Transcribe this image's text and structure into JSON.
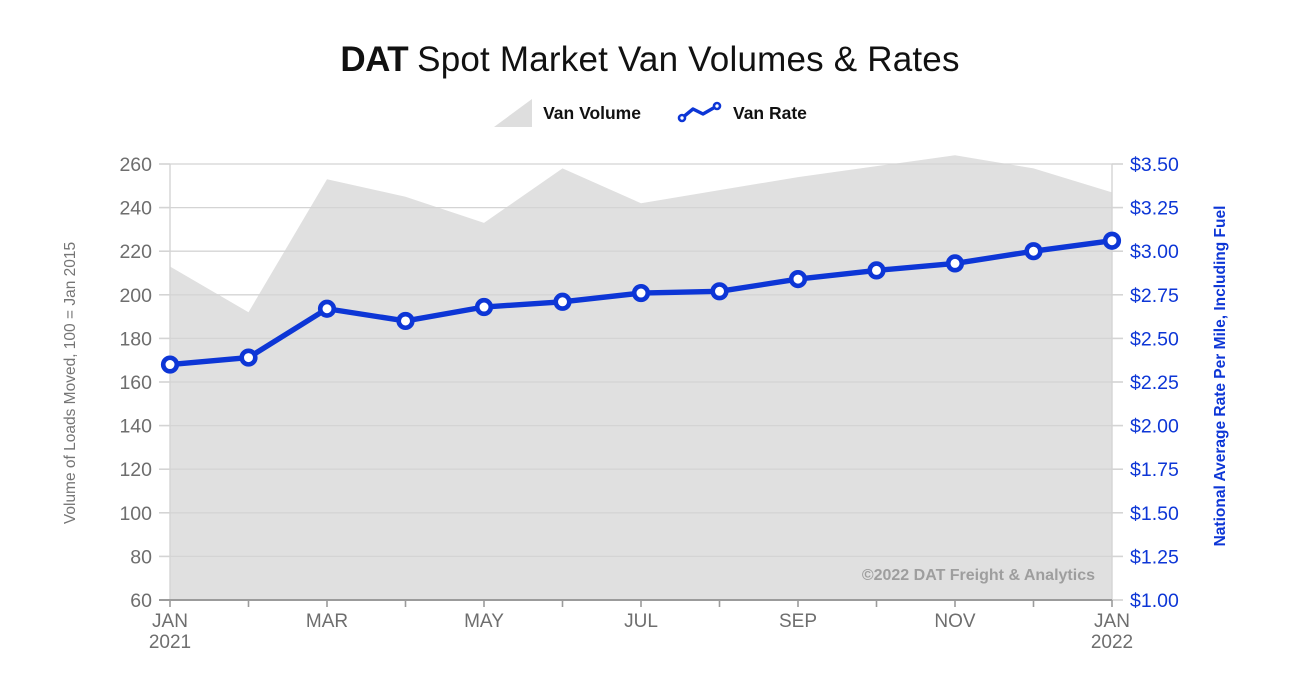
{
  "header": {
    "title_bold": "DAT",
    "title_rest": "Spot Market Van Volumes & Rates"
  },
  "legend": {
    "volume_label": "Van Volume",
    "rate_label": "Van Rate"
  },
  "colors": {
    "brand_blue": "#0d36d6",
    "area_gray": "#e0e0e0",
    "grid": "#d4d4d4",
    "axis_text": "#6e6e6e",
    "axis_line": "#9b9b9b",
    "watermark": "#9e9e9e"
  },
  "chart_data": {
    "type": "combo",
    "title": "DAT Spot Market Van Volumes & Rates",
    "legend_position": "top",
    "grid": true,
    "categories": [
      "Jan 2021",
      "Feb 2021",
      "Mar 2021",
      "Apr 2021",
      "May 2021",
      "Jun 2021",
      "Jul 2021",
      "Aug 2021",
      "Sep 2021",
      "Oct 2021",
      "Nov 2021",
      "Dec 2021",
      "Jan 2022"
    ],
    "series": [
      {
        "name": "Van Volume",
        "type": "area",
        "axis": "left",
        "color": "#e0e0e0",
        "values": [
          213,
          192,
          253,
          245,
          233,
          258,
          242,
          248,
          254,
          259,
          264,
          258,
          247
        ]
      },
      {
        "name": "Van Rate",
        "type": "line",
        "axis": "right",
        "color": "#0d36d6",
        "values": [
          2.35,
          2.39,
          2.67,
          2.6,
          2.68,
          2.71,
          2.76,
          2.77,
          2.84,
          2.89,
          2.93,
          3.0,
          3.06
        ]
      }
    ],
    "left_axis": {
      "label": "Volume of Loads Moved, 100 = Jan 2015",
      "min": 60,
      "max": 260,
      "step": 20,
      "ticks": [
        "260",
        "240",
        "220",
        "200",
        "180",
        "160",
        "140",
        "120",
        "100",
        "80",
        "60"
      ]
    },
    "right_axis": {
      "label": "National Average Rate Per Mile, Including Fuel",
      "min": 1.0,
      "max": 3.5,
      "step": 0.25,
      "ticks": [
        "$3.50",
        "$3.25",
        "$3.00",
        "$2.75",
        "$2.50",
        "$2.25",
        "$2.00",
        "$1.75",
        "$1.50",
        "$1.25",
        "$1.00"
      ]
    },
    "x_ticks": [
      {
        "i": 0,
        "lines": [
          "JAN",
          "2021"
        ]
      },
      {
        "i": 2,
        "lines": [
          "MAR"
        ]
      },
      {
        "i": 4,
        "lines": [
          "MAY"
        ]
      },
      {
        "i": 6,
        "lines": [
          "JUL"
        ]
      },
      {
        "i": 8,
        "lines": [
          "SEP"
        ]
      },
      {
        "i": 10,
        "lines": [
          "NOV"
        ]
      },
      {
        "i": 12,
        "lines": [
          "JAN",
          "2022"
        ]
      }
    ],
    "watermark": "©2022 DAT Freight & Analytics"
  }
}
